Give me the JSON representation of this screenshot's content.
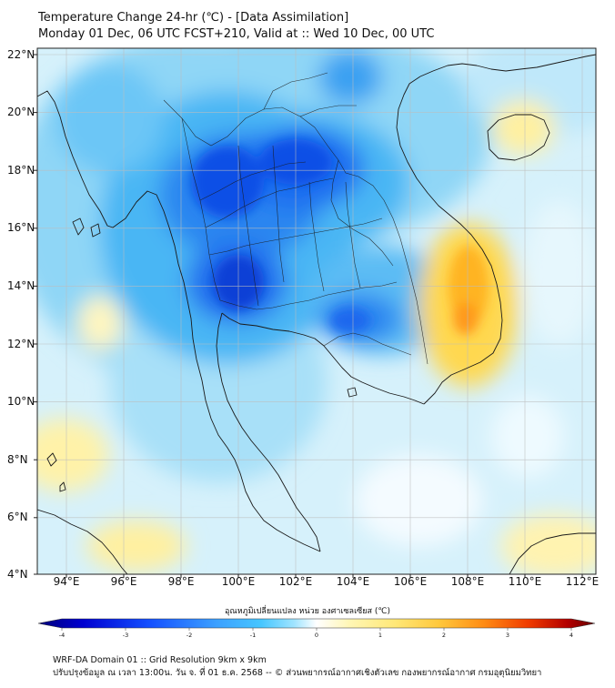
{
  "title_line1": "Temperature Change 24-hr (℃) - [Data Assimilation]",
  "title_line2": "Monday 01 Dec, 06 UTC FCST+210, Valid at :: Wed 10 Dec, 00 UTC",
  "lat_labels": [
    "22°N",
    "20°N",
    "18°N",
    "16°N",
    "14°N",
    "12°N",
    "10°N",
    "8°N",
    "6°N",
    "4°N"
  ],
  "lon_labels": [
    "94°E",
    "96°E",
    "98°E",
    "100°E",
    "102°E",
    "104°E",
    "106°E",
    "108°E",
    "110°E",
    "112°E"
  ],
  "colorbar": {
    "title": "อุณหภูมิเปลี่ยนแปลง หน่วย องศาเซลเซียส (℃)",
    "ticks": [
      "-4",
      "-3",
      "-2",
      "-1",
      "0",
      "1",
      "2",
      "3",
      "4"
    ],
    "min": -4,
    "max": 4,
    "colors": [
      "#00007a",
      "#0000d0",
      "#1450ff",
      "#3ca0ff",
      "#46c6ff",
      "#a0e4ff",
      "#ffffff",
      "#fff6b4",
      "#ffe878",
      "#ffc83c",
      "#ff8c14",
      "#f03c00",
      "#b40000",
      "#640000"
    ]
  },
  "footer_line1": "WRF-DA Domain 01 :: Grid Resolution 9km x 9km",
  "footer_line2": "ปรับปรุงข้อมูล ณ เวลา 13:00น. วัน จ. ที่ 01 ธ.ค. 2568 -- © ส่วนพยากรณ์อากาศเชิงตัวเลข กองพยากรณ์อากาศ กรมอุตุนิยมวิทยา"
}
